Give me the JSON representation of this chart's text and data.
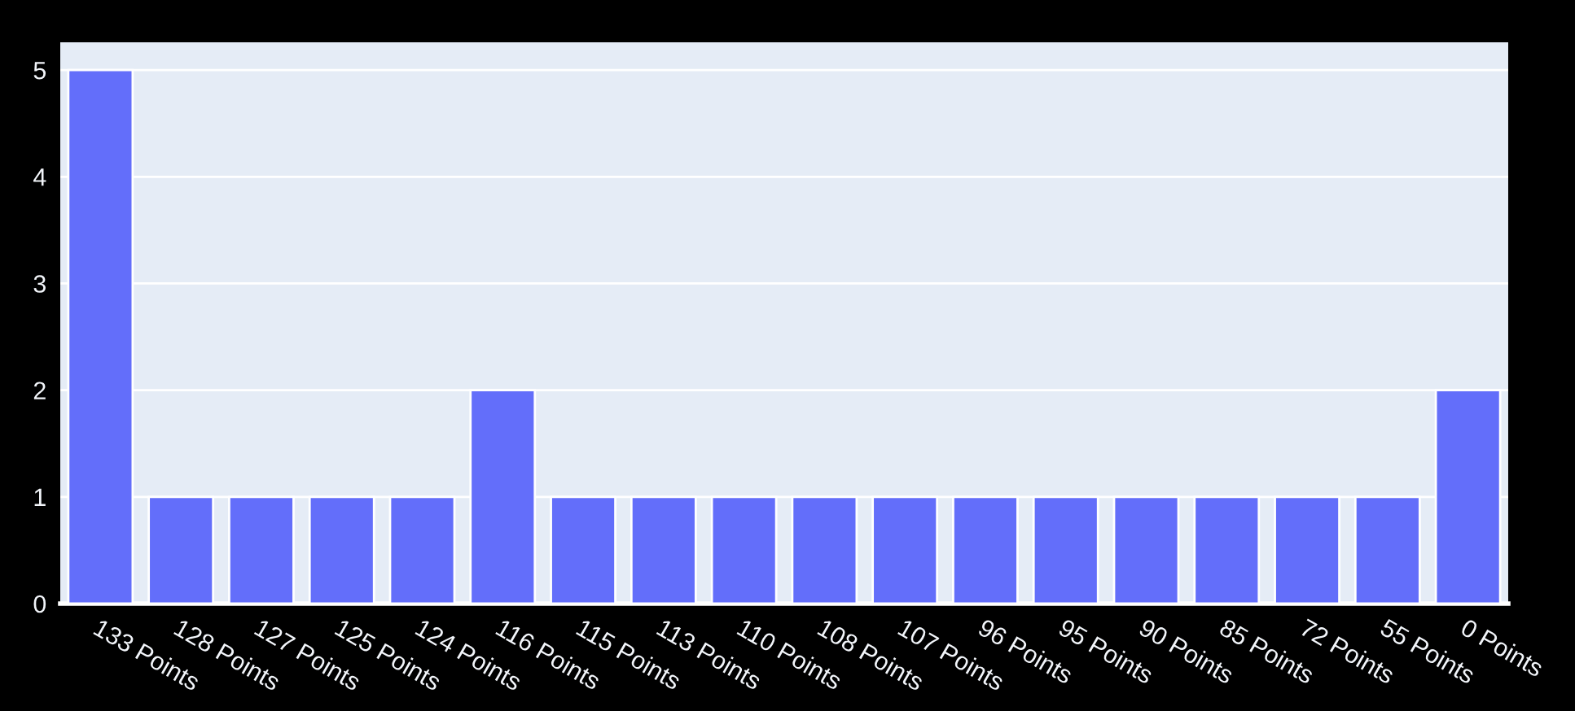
{
  "chart_data": {
    "type": "bar",
    "categories": [
      "133 Points",
      "128 Points",
      "127 Points",
      "125 Points",
      "124 Points",
      "116 Points",
      "115 Points",
      "113 Points",
      "110 Points",
      "108 Points",
      "107 Points",
      "96 Points",
      "95 Points",
      "90 Points",
      "85 Points",
      "72 Points",
      "55 Points",
      "0 Points"
    ],
    "values": [
      5,
      1,
      1,
      1,
      1,
      2,
      1,
      1,
      1,
      1,
      1,
      1,
      1,
      1,
      1,
      1,
      1,
      2
    ],
    "color": "#636efa",
    "ylim": [
      0,
      5.26
    ],
    "yticks": [
      0,
      1,
      2,
      3,
      4,
      5
    ],
    "grid": "y"
  }
}
